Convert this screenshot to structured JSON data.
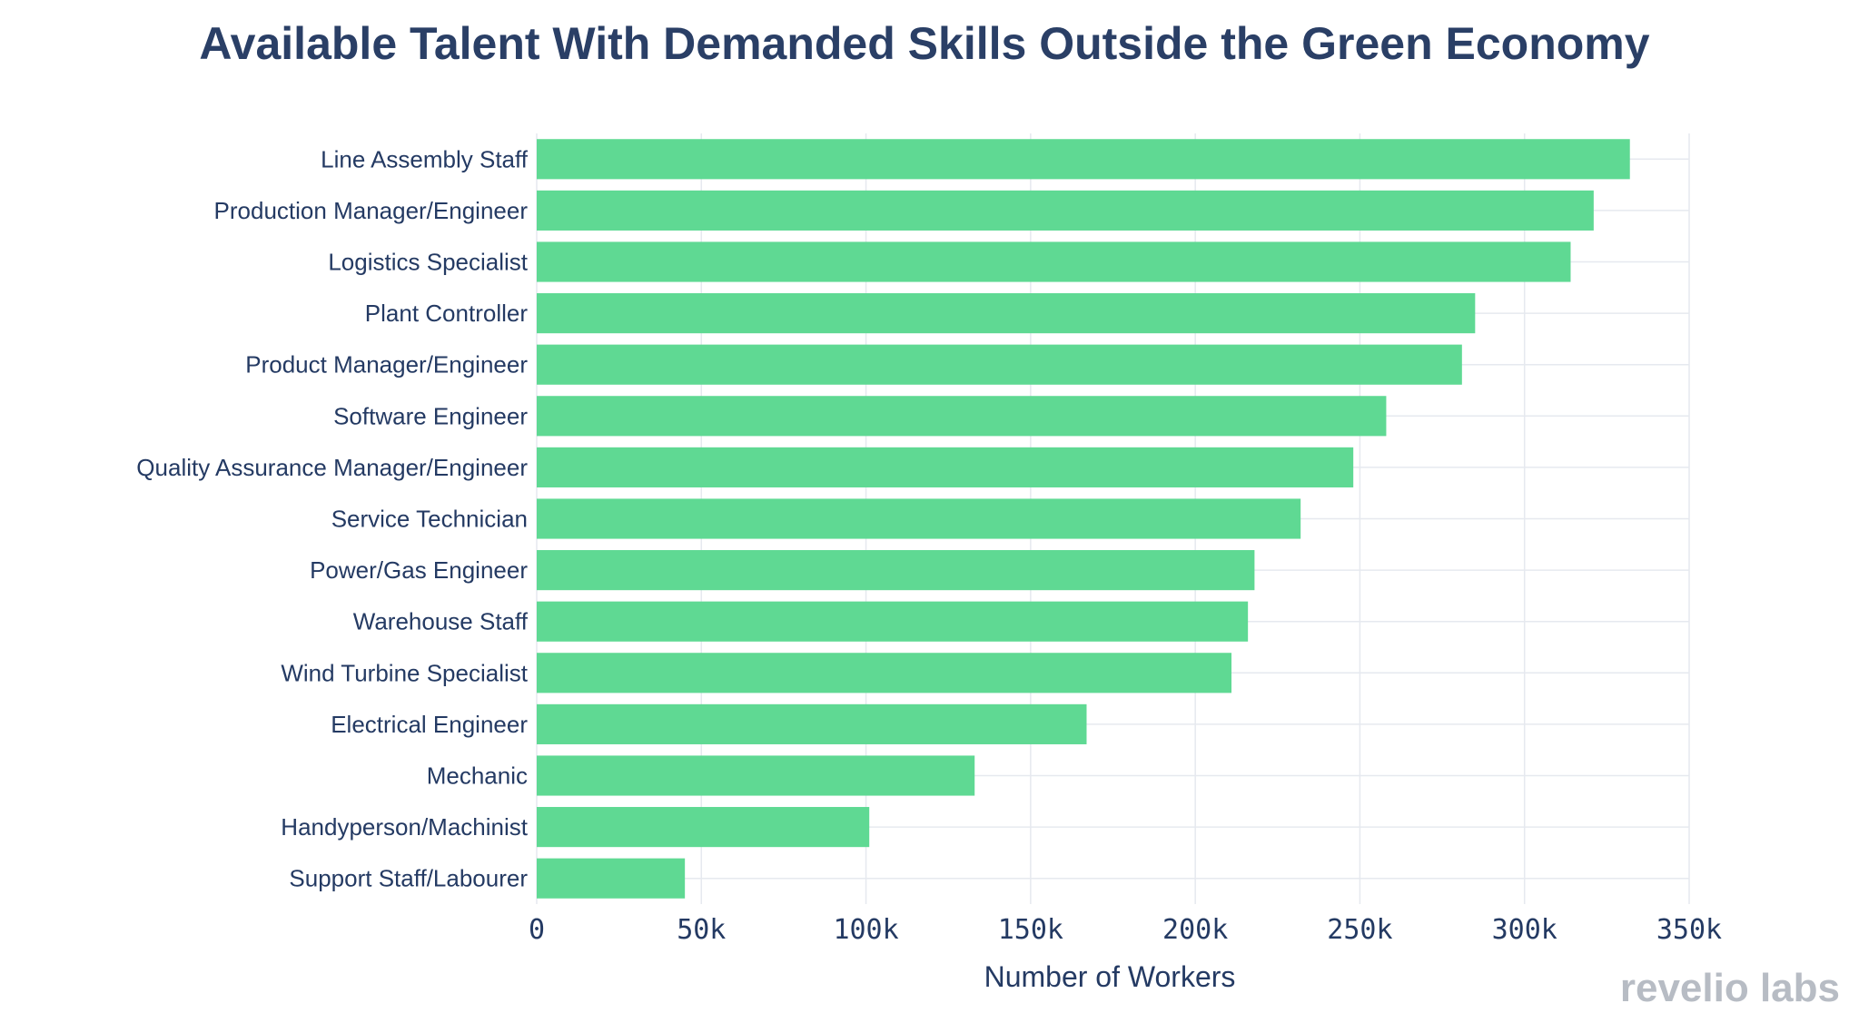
{
  "chart_data": {
    "type": "bar",
    "orientation": "horizontal",
    "title": "Available Talent With Demanded Skills Outside the Green Economy",
    "xlabel": "Number of Workers",
    "ylabel": "",
    "xlim": [
      0,
      350000
    ],
    "xticks": [
      0,
      50000,
      100000,
      150000,
      200000,
      250000,
      300000,
      350000
    ],
    "xtick_labels": [
      "0",
      "50k",
      "100k",
      "150k",
      "200k",
      "250k",
      "300k",
      "350k"
    ],
    "grid": true,
    "categories": [
      "Line Assembly Staff",
      "Production Manager/Engineer",
      "Logistics Specialist",
      "Plant Controller",
      "Product Manager/Engineer",
      "Software Engineer",
      "Quality Assurance Manager/Engineer",
      "Service Technician",
      "Power/Gas Engineer",
      "Warehouse Staff",
      "Wind Turbine Specialist",
      "Electrical Engineer",
      "Mechanic",
      "Handyperson/Machinist",
      "Support Staff/Labourer"
    ],
    "values": [
      332000,
      321000,
      314000,
      285000,
      281000,
      258000,
      248000,
      232000,
      218000,
      216000,
      211000,
      167000,
      133000,
      101000,
      45000
    ],
    "bar_color": "#5fd993"
  },
  "branding": {
    "logo": "revelio labs"
  }
}
